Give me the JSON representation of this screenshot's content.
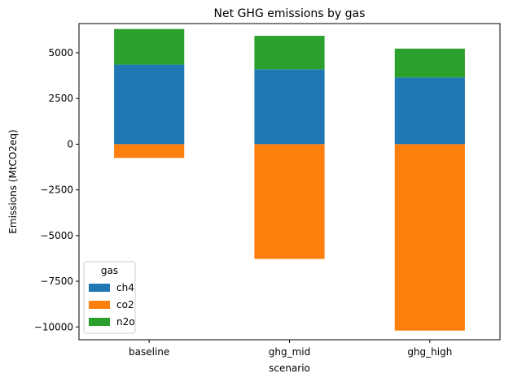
{
  "chart_data": {
    "type": "bar",
    "stacked": true,
    "title": "Net GHG emissions by gas",
    "xlabel": "scenario",
    "ylabel": "Emissions (MtCO2eq)",
    "categories": [
      "baseline",
      "ghg_mid",
      "ghg_high"
    ],
    "series": [
      {
        "name": "ch4",
        "color": "#1f77b4",
        "values": [
          4350,
          4100,
          3650
        ]
      },
      {
        "name": "co2",
        "color": "#ff7f0e",
        "values": [
          -750,
          -6280,
          -10200
        ]
      },
      {
        "name": "n2o",
        "color": "#2ca02c",
        "values": [
          1950,
          1830,
          1580
        ]
      }
    ],
    "ylim": [
      -10700,
      6600
    ],
    "yticks": [
      5000,
      2500,
      0,
      -2500,
      -5000,
      -7500,
      -10000
    ],
    "ytick_labels": [
      "5000",
      "2500",
      "0",
      "−2500",
      "−5000",
      "−7500",
      "−10000"
    ],
    "legend": {
      "title": "gas",
      "position": "lower-left"
    },
    "grid": false
  }
}
